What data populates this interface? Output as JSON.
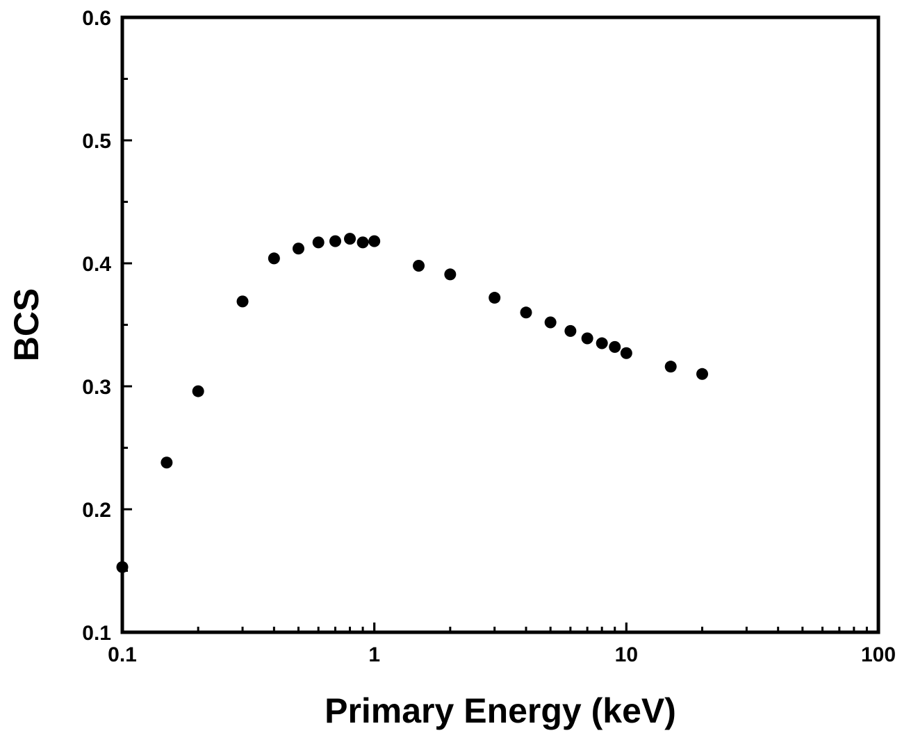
{
  "chart_data": {
    "type": "scatter",
    "title": "",
    "xlabel": "Primary Energy (keV)",
    "ylabel": "BCS",
    "x_scale": "log",
    "xlim": [
      0.1,
      100
    ],
    "ylim": [
      0.1,
      0.6
    ],
    "x_ticks": [
      "0.1",
      "1",
      "10",
      "100"
    ],
    "y_ticks": [
      "0.1",
      "0.2",
      "0.3",
      "0.4",
      "0.5",
      "0.6"
    ],
    "grid": false,
    "legend": "none",
    "marker_color": "#000000",
    "x": [
      0.1,
      0.15,
      0.2,
      0.3,
      0.4,
      0.5,
      0.6,
      0.7,
      0.8,
      0.9,
      1,
      1.5,
      2,
      3,
      4,
      5,
      6,
      7,
      8,
      9,
      10,
      15,
      20
    ],
    "y": [
      0.153,
      0.238,
      0.296,
      0.369,
      0.404,
      0.412,
      0.417,
      0.418,
      0.42,
      0.417,
      0.418,
      0.398,
      0.391,
      0.372,
      0.36,
      0.352,
      0.345,
      0.339,
      0.335,
      0.332,
      0.327,
      0.316,
      0.31
    ]
  }
}
